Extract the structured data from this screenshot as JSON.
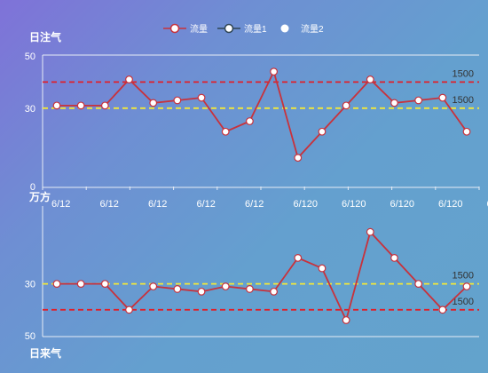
{
  "legend": [
    {
      "label": "流量",
      "style": "line-hollow",
      "color": "#d14a61"
    },
    {
      "label": "流量1",
      "style": "line-hollow-dark",
      "color": "#2f4554"
    },
    {
      "label": "流量2",
      "style": "dot",
      "color": "#ffffff"
    }
  ],
  "chart_data": [
    {
      "type": "line",
      "title": "日注气",
      "y_unit_label": "万方",
      "ylim": [
        0,
        50
      ],
      "y_ticks": [
        0,
        30,
        50
      ],
      "x_tick_labels": [
        "6/12",
        "6/12",
        "6/12",
        "6/12",
        "6/12",
        "6/120",
        "6/120",
        "6/120",
        "6/120",
        "6/120"
      ],
      "series": [
        {
          "name": "流量",
          "color": "#c8323c",
          "values": [
            31,
            31,
            31,
            41,
            32,
            33,
            34,
            21,
            25,
            44,
            11,
            21,
            31,
            41,
            32,
            33,
            34,
            21
          ]
        }
      ],
      "reference_lines": [
        {
          "value": 40,
          "label": "1500",
          "color": "#e0202a"
        },
        {
          "value": 30,
          "label": "1500",
          "color": "#f3e838"
        }
      ]
    },
    {
      "type": "line",
      "title": "日来气",
      "ylim": [
        0,
        50
      ],
      "y_inverted": true,
      "y_ticks": [
        30,
        50
      ],
      "series": [
        {
          "name": "流量",
          "color": "#c8323c",
          "values": [
            30,
            30,
            30,
            40,
            31,
            32,
            33,
            31,
            32,
            33,
            20,
            24,
            44,
            10,
            20,
            30,
            40,
            31
          ]
        }
      ],
      "reference_lines": [
        {
          "value": 30,
          "label": "1500",
          "color": "#f3e838"
        },
        {
          "value": 40,
          "label": "1500",
          "color": "#e0202a"
        }
      ]
    }
  ]
}
